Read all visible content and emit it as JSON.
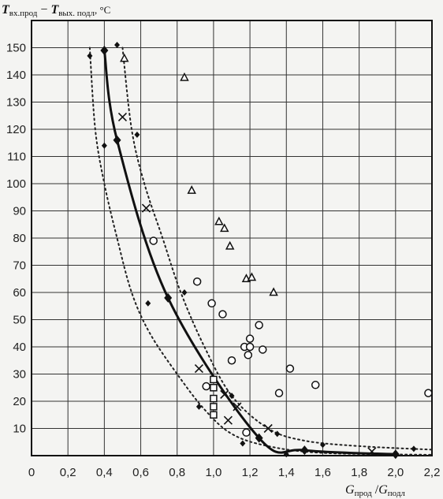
{
  "chart_data": {
    "type": "scatter",
    "ylabel": {
      "t1": "T",
      "t1_sub": "вх.прод",
      "minus": " − ",
      "t2": "T",
      "t2_sub": "вых. подл",
      "unit": ", °C"
    },
    "xlabel": {
      "g1": "G",
      "g1_sub": "прод",
      "slash": " /",
      "g2": "G",
      "g2_sub": "подл"
    },
    "x_ticks": [
      "0",
      "0,2",
      "0,4",
      "0,6",
      "0,8",
      "1,0",
      "1,2",
      "1,4",
      "1,6",
      "1,8",
      "2,0",
      "2,2"
    ],
    "y_ticks": [
      "10",
      "20",
      "30",
      "40",
      "50",
      "60",
      "70",
      "80",
      "90",
      "100",
      "110",
      "120",
      "130",
      "140",
      "150"
    ],
    "xlim": [
      0,
      2.2
    ],
    "ylim": [
      0,
      160
    ],
    "grid": true,
    "series": [
      {
        "marker": "diamond",
        "curve": "solid",
        "points": [
          [
            0.4,
            149
          ],
          [
            0.47,
            116
          ],
          [
            0.75,
            58
          ],
          [
            1.25,
            6.5
          ],
          [
            1.5,
            2
          ],
          [
            2.0,
            0.5
          ]
        ]
      },
      {
        "marker": "diamond-small",
        "points": [
          [
            0.32,
            147
          ],
          [
            0.47,
            151
          ],
          [
            0.4,
            114
          ],
          [
            0.58,
            118
          ],
          [
            0.64,
            56
          ],
          [
            0.84,
            60
          ],
          [
            0.92,
            18
          ],
          [
            1.1,
            22
          ],
          [
            1.16,
            4.5
          ],
          [
            1.35,
            8
          ],
          [
            1.4,
            0.5
          ],
          [
            1.6,
            4
          ],
          [
            2.1,
            2.5
          ]
        ]
      },
      {
        "marker": "cross",
        "points": [
          [
            0.5,
            124.5
          ],
          [
            0.63,
            91
          ],
          [
            0.92,
            32
          ],
          [
            1.06,
            22.5
          ],
          [
            1.08,
            13
          ],
          [
            1.13,
            18
          ],
          [
            1.3,
            10
          ],
          [
            1.87,
            1.5
          ]
        ]
      },
      {
        "marker": "circle",
        "points": [
          [
            0.67,
            79
          ],
          [
            0.91,
            64
          ],
          [
            0.99,
            56
          ],
          [
            1.05,
            52
          ],
          [
            1.25,
            48
          ],
          [
            1.2,
            43
          ],
          [
            1.17,
            40
          ],
          [
            1.2,
            40
          ],
          [
            1.27,
            39
          ],
          [
            1.19,
            37
          ],
          [
            1.1,
            35
          ],
          [
            1.42,
            32
          ],
          [
            1.36,
            23
          ],
          [
            1.56,
            26
          ],
          [
            2.18,
            23
          ],
          [
            0.96,
            25.5
          ],
          [
            1.18,
            8.5
          ]
        ]
      },
      {
        "marker": "triangle",
        "points": [
          [
            0.51,
            146
          ],
          [
            0.84,
            139
          ],
          [
            0.88,
            97.5
          ],
          [
            1.03,
            86
          ],
          [
            1.06,
            83.5
          ],
          [
            1.09,
            77
          ],
          [
            1.18,
            65
          ],
          [
            1.21,
            65.5
          ],
          [
            1.33,
            60
          ]
        ]
      },
      {
        "marker": "square",
        "points": [
          [
            1.0,
            28
          ],
          [
            1.0,
            25
          ],
          [
            1.0,
            21
          ],
          [
            1.0,
            18
          ],
          [
            1.0,
            15
          ]
        ]
      }
    ],
    "envelopes": [
      [
        [
          0.32,
          150
        ],
        [
          0.35,
          120
        ],
        [
          0.4,
          100
        ],
        [
          0.47,
          80
        ],
        [
          0.55,
          60
        ],
        [
          0.65,
          45
        ],
        [
          0.8,
          30
        ],
        [
          0.95,
          17
        ],
        [
          1.1,
          8
        ],
        [
          1.3,
          3.5
        ],
        [
          1.6,
          1
        ],
        [
          2.2,
          0.3
        ]
      ],
      [
        [
          0.5,
          150
        ],
        [
          0.55,
          120
        ],
        [
          0.62,
          100
        ],
        [
          0.72,
          80
        ],
        [
          0.82,
          60
        ],
        [
          0.95,
          40
        ],
        [
          1.1,
          22
        ],
        [
          1.3,
          10
        ],
        [
          1.5,
          5.5
        ],
        [
          1.8,
          3.5
        ],
        [
          2.2,
          2.2
        ]
      ]
    ]
  }
}
